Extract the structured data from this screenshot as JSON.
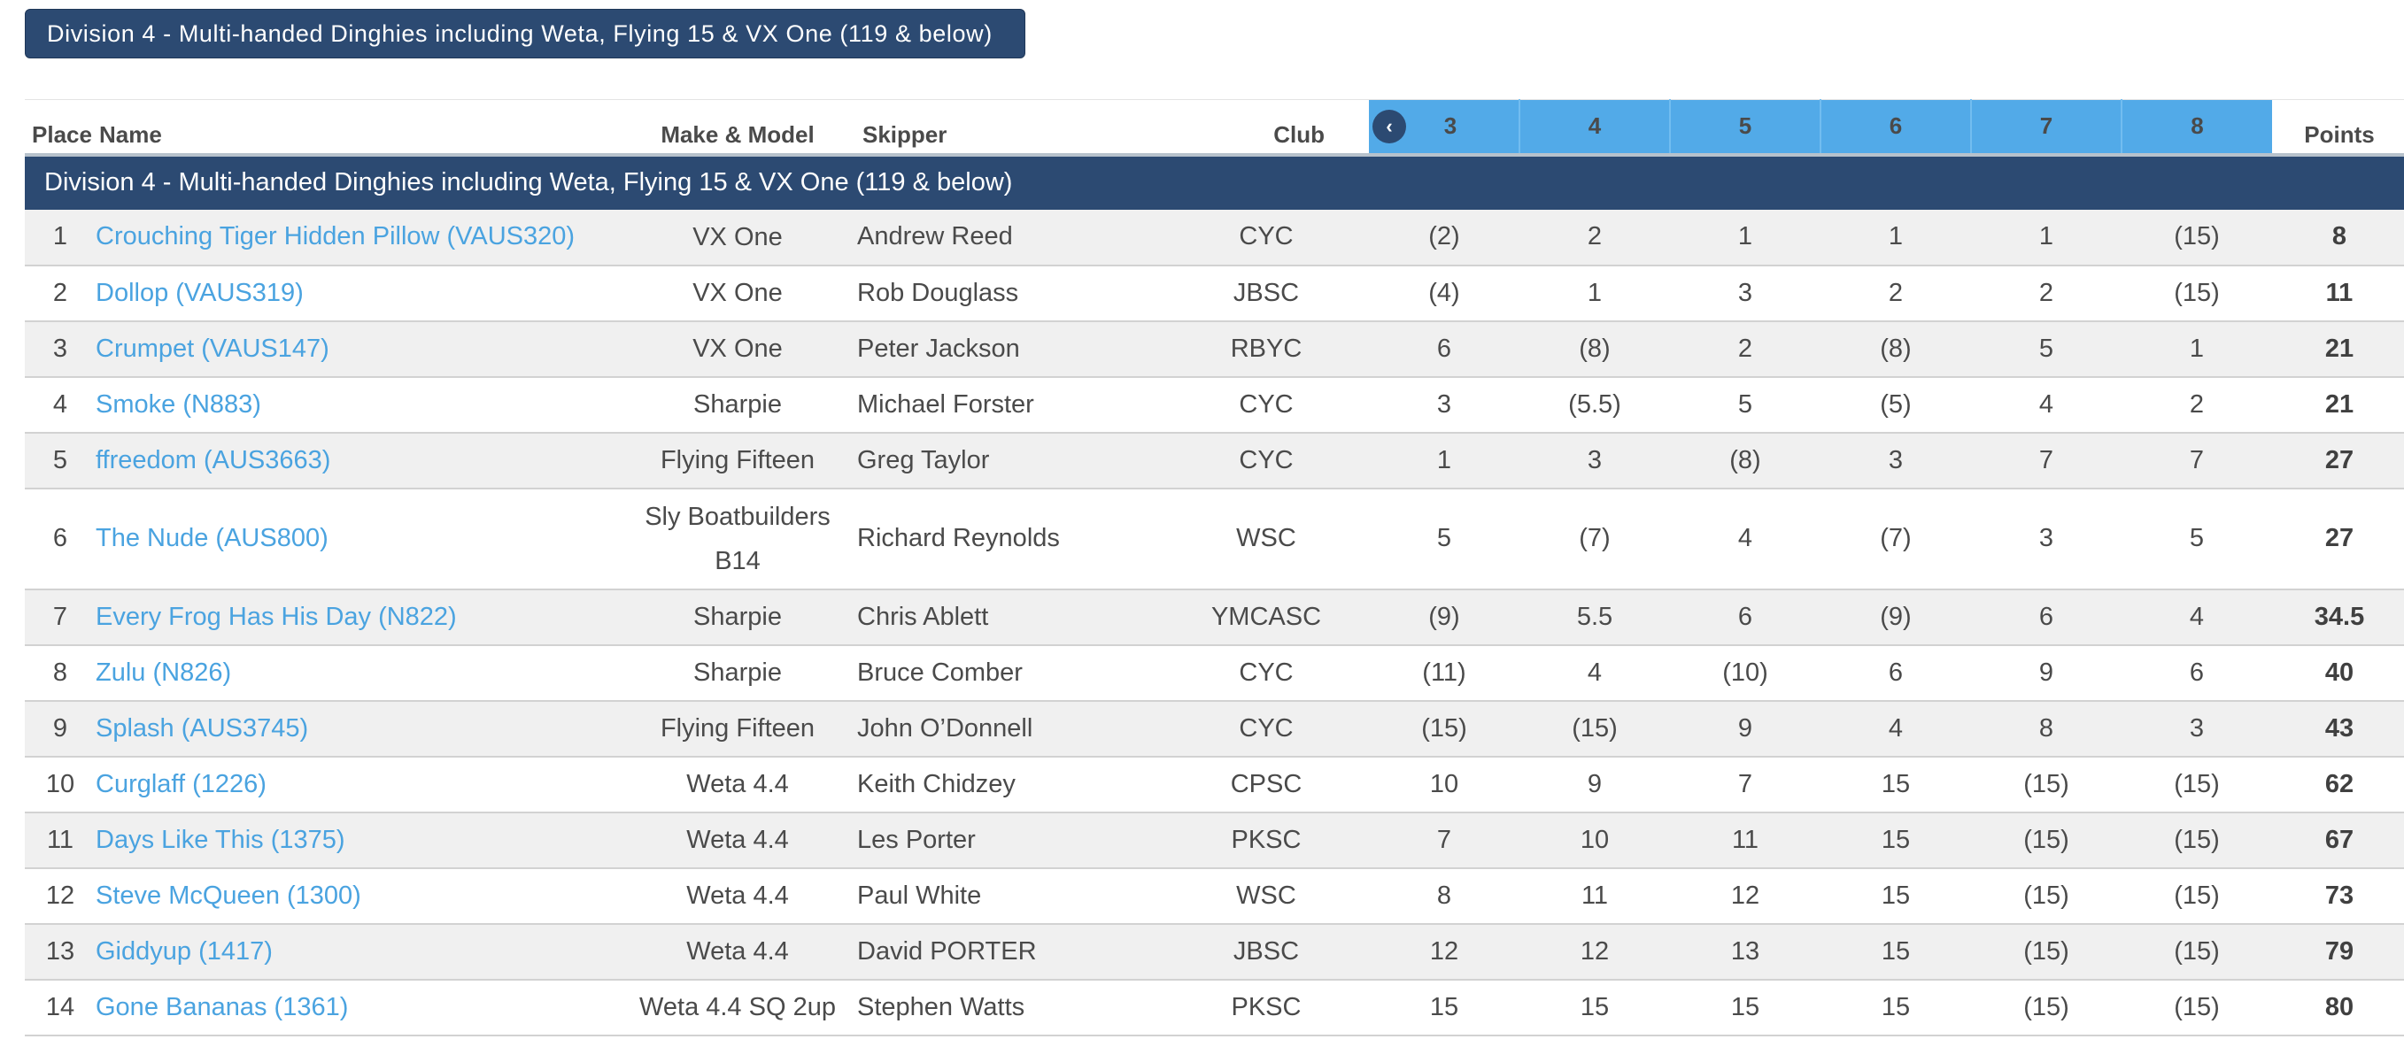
{
  "division_button": "Division 4 - Multi-handed Dinghies including Weta, Flying 15 & VX One (119 & below)",
  "headers": {
    "place": "Place",
    "name": "Name",
    "make": "Make & Model",
    "skipper": "Skipper",
    "club": "Club",
    "races": [
      "3",
      "4",
      "5",
      "6",
      "7",
      "8"
    ],
    "points": "Points"
  },
  "group_label": "Division 4 - Multi-handed Dinghies including Weta, Flying 15 & VX One (119 & below)",
  "icons": {
    "prev": "chevron-left-icon"
  },
  "colors": {
    "navy": "#2c4a72",
    "race_header": "#52aae8",
    "link": "#4aa3e0"
  },
  "rows": [
    {
      "place": "1",
      "name": "Crouching Tiger Hidden Pillow (VAUS320)",
      "make": "VX One",
      "skipper": "Andrew Reed",
      "club": "CYC",
      "races": [
        "(2)",
        "2",
        "1",
        "1",
        "1",
        "(15)"
      ],
      "points": "8"
    },
    {
      "place": "2",
      "name": "Dollop (VAUS319)",
      "make": "VX One",
      "skipper": "Rob Douglass",
      "club": "JBSC",
      "races": [
        "(4)",
        "1",
        "3",
        "2",
        "2",
        "(15)"
      ],
      "points": "11"
    },
    {
      "place": "3",
      "name": "Crumpet (VAUS147)",
      "make": "VX One",
      "skipper": "Peter Jackson",
      "club": "RBYC",
      "races": [
        "6",
        "(8)",
        "2",
        "(8)",
        "5",
        "1"
      ],
      "points": "21"
    },
    {
      "place": "4",
      "name": "Smoke (N883)",
      "make": "Sharpie",
      "skipper": "Michael Forster",
      "club": "CYC",
      "races": [
        "3",
        "(5.5)",
        "5",
        "(5)",
        "4",
        "2"
      ],
      "points": "21"
    },
    {
      "place": "5",
      "name": "ffreedom (AUS3663)",
      "make": "Flying Fifteen",
      "skipper": "Greg Taylor",
      "club": "CYC",
      "races": [
        "1",
        "3",
        "(8)",
        "3",
        "7",
        "7"
      ],
      "points": "27"
    },
    {
      "place": "6",
      "name": "The Nude (AUS800)",
      "make_line1": "Sly Boatbuilders",
      "make_line2": "B14",
      "skipper": "Richard Reynolds",
      "club": "WSC",
      "races": [
        "5",
        "(7)",
        "4",
        "(7)",
        "3",
        "5"
      ],
      "points": "27"
    },
    {
      "place": "7",
      "name": "Every Frog Has His Day (N822)",
      "make": "Sharpie",
      "skipper": "Chris Ablett",
      "club": "YMCASC",
      "races": [
        "(9)",
        "5.5",
        "6",
        "(9)",
        "6",
        "4"
      ],
      "points": "34.5"
    },
    {
      "place": "8",
      "name": "Zulu (N826)",
      "make": "Sharpie",
      "skipper": "Bruce Comber",
      "club": "CYC",
      "races": [
        "(11)",
        "4",
        "(10)",
        "6",
        "9",
        "6"
      ],
      "points": "40"
    },
    {
      "place": "9",
      "name": "Splash (AUS3745)",
      "make": "Flying Fifteen",
      "skipper": "John O’Donnell",
      "club": "CYC",
      "races": [
        "(15)",
        "(15)",
        "9",
        "4",
        "8",
        "3"
      ],
      "points": "43"
    },
    {
      "place": "10",
      "name": "Curglaff (1226)",
      "make": "Weta 4.4",
      "skipper": "Keith Chidzey",
      "club": "CPSC",
      "races": [
        "10",
        "9",
        "7",
        "15",
        "(15)",
        "(15)"
      ],
      "points": "62"
    },
    {
      "place": "11",
      "name": "Days Like This (1375)",
      "make": "Weta 4.4",
      "skipper": "Les Porter",
      "club": "PKSC",
      "races": [
        "7",
        "10",
        "11",
        "15",
        "(15)",
        "(15)"
      ],
      "points": "67"
    },
    {
      "place": "12",
      "name": "Steve McQueen (1300)",
      "make": "Weta 4.4",
      "skipper": "Paul White",
      "club": "WSC",
      "races": [
        "8",
        "11",
        "12",
        "15",
        "(15)",
        "(15)"
      ],
      "points": "73"
    },
    {
      "place": "13",
      "name": "Giddyup (1417)",
      "make": "Weta 4.4",
      "skipper": "David PORTER",
      "club": "JBSC",
      "races": [
        "12",
        "12",
        "13",
        "15",
        "(15)",
        "(15)"
      ],
      "points": "79"
    },
    {
      "place": "14",
      "name": "Gone Bananas (1361)",
      "make": "Weta 4.4 SQ 2up",
      "skipper": "Stephen Watts",
      "club": "PKSC",
      "races": [
        "15",
        "15",
        "15",
        "15",
        "(15)",
        "(15)"
      ],
      "points": "80"
    }
  ]
}
